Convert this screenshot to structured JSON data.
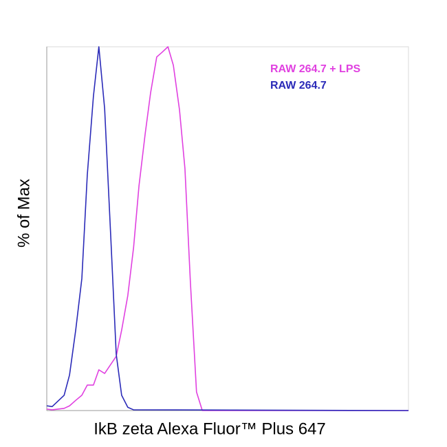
{
  "chart_data": {
    "type": "line",
    "x_label": "IkB zeta Alexa Fluor™ Plus 647",
    "y_label": "% of Max",
    "xlim": [
      0,
      100
    ],
    "ylim": [
      0,
      100
    ],
    "legend": "top-right",
    "series": [
      {
        "name": "RAW 264.7 + LPS",
        "color": "#e040e0",
        "x": [
          0,
          1.5,
          4.8,
          6.3,
          8.0,
          9.7,
          11.2,
          12.9,
          14.4,
          16.0,
          17.7,
          19.2,
          20.7,
          22.4,
          24.0,
          25.5,
          27.2,
          28.7,
          30.4,
          31.9,
          33.5,
          35.0,
          36.7,
          38.2,
          39.7,
          41.4,
          43.0,
          100
        ],
        "values": [
          0.4,
          0.2,
          0.6,
          1.3,
          2.8,
          4.2,
          7.0,
          7.0,
          11.2,
          10.2,
          12.7,
          14.9,
          22.1,
          31.6,
          44.8,
          61.8,
          76.0,
          87.3,
          97.2,
          98.5,
          100,
          94.9,
          82.6,
          66.5,
          35.4,
          5.1,
          0,
          0
        ]
      },
      {
        "name": "RAW 264.7",
        "color": "#2a2ab8",
        "x": [
          0,
          1.5,
          4.8,
          6.3,
          8.0,
          9.7,
          11.2,
          12.9,
          14.4,
          16.0,
          17.7,
          19.2,
          20.7,
          22.4,
          24.0,
          100
        ],
        "values": [
          1.3,
          1.1,
          4.2,
          9.8,
          22.1,
          36.3,
          64.7,
          86.4,
          100,
          83.0,
          47.6,
          15.5,
          4.2,
          0.9,
          0.2,
          0
        ]
      }
    ]
  }
}
